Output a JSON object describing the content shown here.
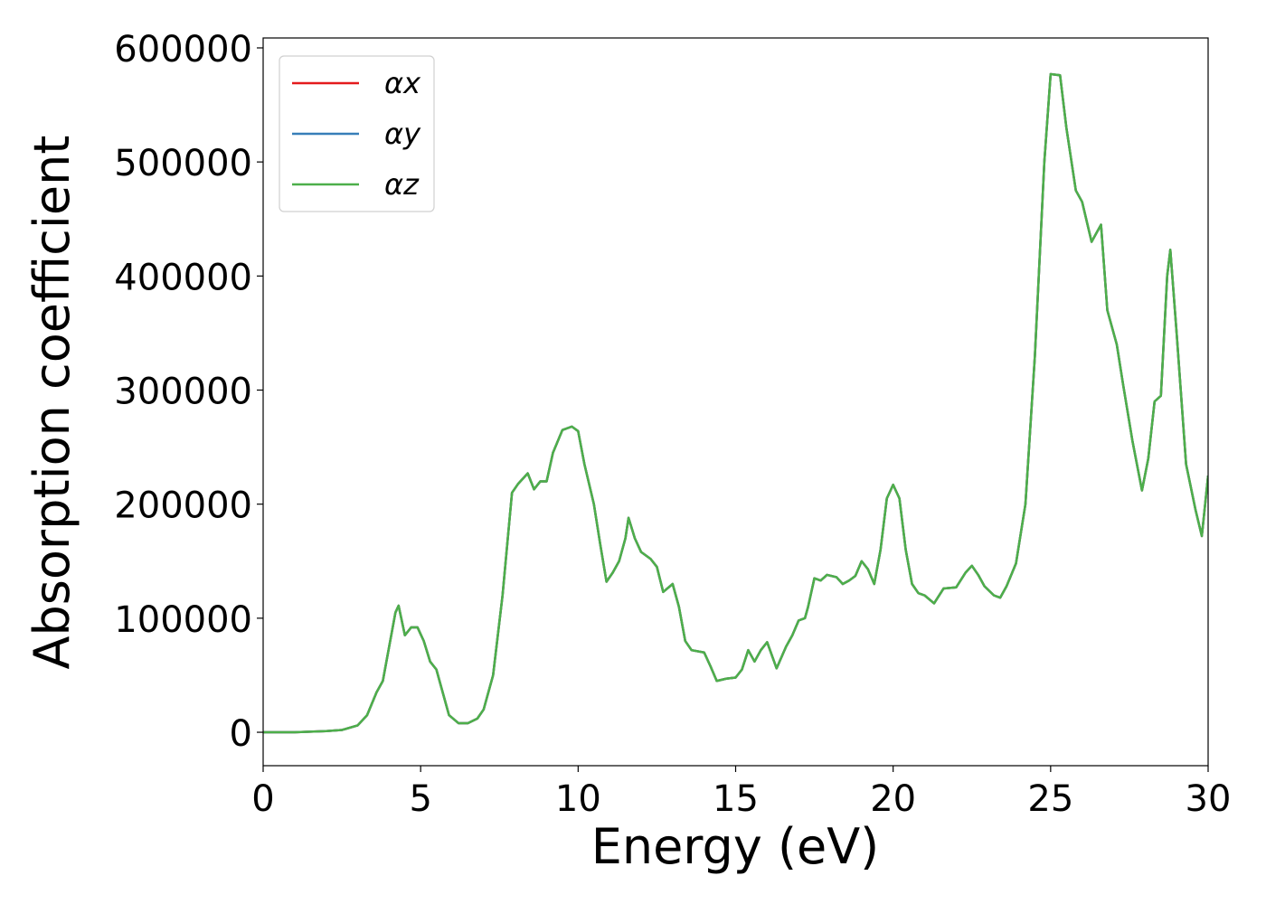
{
  "chart_data": {
    "type": "line",
    "xlabel": "Energy (eV)",
    "ylabel": "Absorption coefficient",
    "xlim": [
      0,
      30
    ],
    "xticks": [
      0,
      5,
      10,
      15,
      20,
      25,
      30
    ],
    "ylim": [
      -29300,
      608700
    ],
    "yticks": [
      0,
      100000,
      200000,
      300000,
      400000,
      500000,
      600000
    ],
    "grid": false,
    "legend": "upper left",
    "x": [
      0,
      1,
      2,
      2.5,
      3,
      3.3,
      3.6,
      3.8,
      4.0,
      4.2,
      4.3,
      4.5,
      4.7,
      4.9,
      5.1,
      5.3,
      5.5,
      5.7,
      5.9,
      6.2,
      6.5,
      6.8,
      7.0,
      7.3,
      7.6,
      7.9,
      8.1,
      8.4,
      8.6,
      8.8,
      9.0,
      9.2,
      9.5,
      9.8,
      10.0,
      10.2,
      10.5,
      10.7,
      10.9,
      11.1,
      11.3,
      11.5,
      11.6,
      11.8,
      12.0,
      12.3,
      12.5,
      12.7,
      13.0,
      13.2,
      13.4,
      13.6,
      14.0,
      14.2,
      14.4,
      14.7,
      15.0,
      15.2,
      15.4,
      15.6,
      15.8,
      16.0,
      16.3,
      16.6,
      16.8,
      17.0,
      17.2,
      17.3,
      17.5,
      17.7,
      17.9,
      18.2,
      18.4,
      18.6,
      18.8,
      19.0,
      19.2,
      19.4,
      19.6,
      19.8,
      20.0,
      20.2,
      20.4,
      20.6,
      20.8,
      21.0,
      21.3,
      21.6,
      22.0,
      22.3,
      22.5,
      22.7,
      22.9,
      23.2,
      23.4,
      23.6,
      23.9,
      24.2,
      24.5,
      24.8,
      25.0,
      25.3,
      25.5,
      25.8,
      26.0,
      26.3,
      26.6,
      26.8,
      27.1,
      27.3,
      27.6,
      27.9,
      28.1,
      28.3,
      28.5,
      28.7,
      28.8,
      29.0,
      29.3,
      29.6,
      29.8,
      30.0
    ],
    "series": [
      {
        "name": "αx",
        "color": "#e41a1c",
        "values": [
          0,
          0,
          1000,
          2000,
          6000,
          15000,
          35000,
          45000,
          75000,
          105000,
          111000,
          85000,
          92000,
          92000,
          80000,
          62000,
          55000,
          35000,
          15000,
          8000,
          8000,
          12000,
          20000,
          50000,
          120000,
          210000,
          218000,
          227000,
          213000,
          220000,
          220000,
          245000,
          265000,
          268000,
          264000,
          235000,
          200000,
          165000,
          132000,
          140000,
          150000,
          170000,
          188000,
          170000,
          158000,
          152000,
          145000,
          123000,
          130000,
          110000,
          80000,
          72000,
          70000,
          58000,
          45000,
          47000,
          48000,
          55000,
          72000,
          62000,
          72000,
          79000,
          56000,
          75000,
          85000,
          98000,
          100000,
          110000,
          135000,
          133000,
          138000,
          136000,
          130000,
          133000,
          137000,
          150000,
          143000,
          130000,
          160000,
          205000,
          217000,
          205000,
          160000,
          130000,
          122000,
          120000,
          113000,
          126000,
          127000,
          140000,
          146000,
          138000,
          128000,
          120000,
          118000,
          128000,
          148000,
          200000,
          330000,
          500000,
          577000,
          576000,
          530000,
          475000,
          465000,
          430000,
          445000,
          370000,
          340000,
          305000,
          255000,
          212000,
          240000,
          290000,
          295000,
          400000,
          423000,
          350000,
          235000,
          195000,
          172000,
          225000
        ]
      },
      {
        "name": "αy",
        "color": "#377eb8",
        "values": [
          0,
          0,
          1000,
          2000,
          6000,
          15000,
          35000,
          45000,
          75000,
          105000,
          111000,
          85000,
          92000,
          92000,
          80000,
          62000,
          55000,
          35000,
          15000,
          8000,
          8000,
          12000,
          20000,
          50000,
          120000,
          210000,
          218000,
          227000,
          213000,
          220000,
          220000,
          245000,
          265000,
          268000,
          264000,
          235000,
          200000,
          165000,
          132000,
          140000,
          150000,
          170000,
          188000,
          170000,
          158000,
          152000,
          145000,
          123000,
          130000,
          110000,
          80000,
          72000,
          70000,
          58000,
          45000,
          47000,
          48000,
          55000,
          72000,
          62000,
          72000,
          79000,
          56000,
          75000,
          85000,
          98000,
          100000,
          110000,
          135000,
          133000,
          138000,
          136000,
          130000,
          133000,
          137000,
          150000,
          143000,
          130000,
          160000,
          205000,
          217000,
          205000,
          160000,
          130000,
          122000,
          120000,
          113000,
          126000,
          127000,
          140000,
          146000,
          138000,
          128000,
          120000,
          118000,
          128000,
          148000,
          200000,
          330000,
          500000,
          577000,
          576000,
          530000,
          475000,
          465000,
          430000,
          445000,
          370000,
          340000,
          305000,
          255000,
          212000,
          240000,
          290000,
          295000,
          400000,
          423000,
          350000,
          235000,
          195000,
          172000,
          225000
        ]
      },
      {
        "name": "αz",
        "color": "#4daf4a",
        "values": [
          0,
          0,
          1000,
          2000,
          6000,
          15000,
          35000,
          45000,
          75000,
          105000,
          111000,
          85000,
          92000,
          92000,
          80000,
          62000,
          55000,
          35000,
          15000,
          8000,
          8000,
          12000,
          20000,
          50000,
          120000,
          210000,
          218000,
          227000,
          213000,
          220000,
          220000,
          245000,
          265000,
          268000,
          264000,
          235000,
          200000,
          165000,
          132000,
          140000,
          150000,
          170000,
          188000,
          170000,
          158000,
          152000,
          145000,
          123000,
          130000,
          110000,
          80000,
          72000,
          70000,
          58000,
          45000,
          47000,
          48000,
          55000,
          72000,
          62000,
          72000,
          79000,
          56000,
          75000,
          85000,
          98000,
          100000,
          110000,
          135000,
          133000,
          138000,
          136000,
          130000,
          133000,
          137000,
          150000,
          143000,
          130000,
          160000,
          205000,
          217000,
          205000,
          160000,
          130000,
          122000,
          120000,
          113000,
          126000,
          127000,
          140000,
          146000,
          138000,
          128000,
          120000,
          118000,
          128000,
          148000,
          200000,
          330000,
          500000,
          577000,
          576000,
          530000,
          475000,
          465000,
          430000,
          445000,
          370000,
          340000,
          305000,
          255000,
          212000,
          240000,
          290000,
          295000,
          400000,
          423000,
          350000,
          235000,
          195000,
          172000,
          225000
        ]
      }
    ]
  }
}
